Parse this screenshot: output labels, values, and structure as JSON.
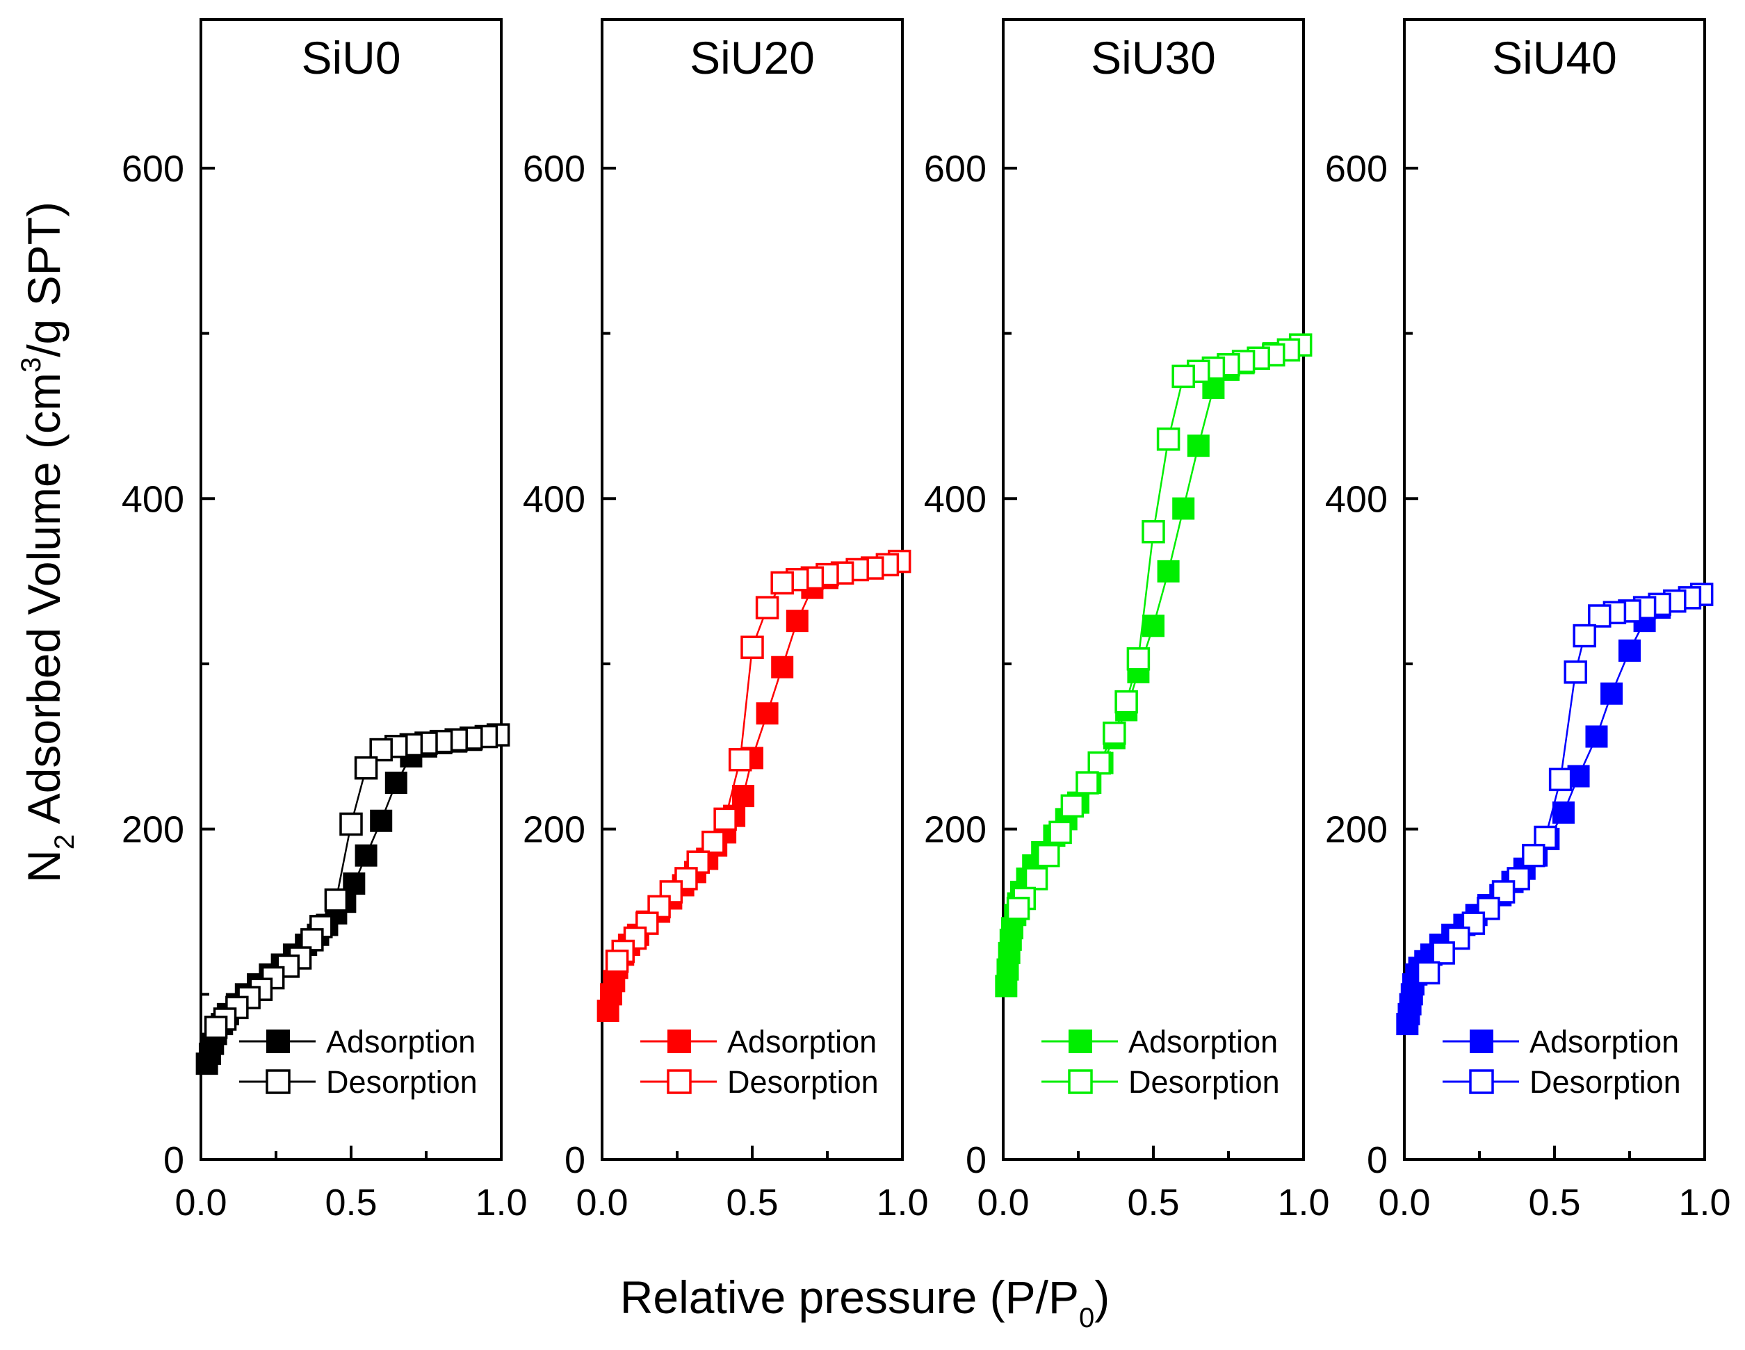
{
  "chart_data": {
    "type": "scatter",
    "xlabel_main": "Relative pressure (P/P",
    "xlabel_sub": "0",
    "xlabel_end": ")",
    "ylabel_pre": "N",
    "ylabel_sub": "2",
    "ylabel_mid": " Adsorbed Volume (cm",
    "ylabel_sup": "3",
    "ylabel_end": "/g SPT)",
    "xlim": [
      0.0,
      1.0
    ],
    "ylim": [
      0,
      690
    ],
    "xticks": [
      0.0,
      0.5,
      1.0
    ],
    "xtick_labels": [
      "0.0",
      "0.5",
      "1.0"
    ],
    "yticks": [
      0,
      200,
      400,
      600
    ],
    "ytick_labels": [
      "0",
      "200",
      "400",
      "600"
    ],
    "legend_labels": [
      "Adsorption",
      "Desorption"
    ],
    "panels": [
      {
        "title": "SiU0",
        "color": "#000000",
        "series": [
          {
            "name": "Adsorption",
            "filled": true,
            "x": [
              0.02,
              0.03,
              0.04,
              0.05,
              0.07,
              0.09,
              0.12,
              0.15,
              0.19,
              0.23,
              0.27,
              0.31,
              0.35,
              0.39,
              0.42,
              0.45,
              0.48,
              0.51,
              0.55,
              0.6,
              0.65,
              0.7,
              0.75,
              0.8,
              0.85,
              0.9,
              0.95,
              0.99
            ],
            "y": [
              58,
              64,
              70,
              76,
              82,
              88,
              94,
              100,
              106,
              112,
              118,
              124,
              130,
              136,
              142,
              149,
              156,
              167,
              184,
              205,
              228,
              244,
              250,
              252,
              253,
              254,
              256,
              257
            ]
          },
          {
            "name": "Desorption",
            "filled": false,
            "x": [
              0.99,
              0.95,
              0.9,
              0.85,
              0.8,
              0.75,
              0.7,
              0.65,
              0.6,
              0.55,
              0.5,
              0.45,
              0.4,
              0.37,
              0.33,
              0.29,
              0.24,
              0.2,
              0.16,
              0.12,
              0.08,
              0.05
            ],
            "y": [
              257,
              256,
              255,
              254,
              253,
              252,
              251,
              250,
              248,
              237,
              203,
              157,
              141,
              133,
              122,
              117,
              110,
              103,
              98,
              92,
              85,
              80
            ]
          }
        ],
        "legend": {
          "position": "lower-right"
        }
      },
      {
        "title": "SiU20",
        "color": "#ff0000",
        "series": [
          {
            "name": "Adsorption",
            "filled": true,
            "x": [
              0.02,
              0.03,
              0.04,
              0.05,
              0.07,
              0.09,
              0.12,
              0.15,
              0.19,
              0.23,
              0.27,
              0.31,
              0.35,
              0.38,
              0.41,
              0.44,
              0.47,
              0.5,
              0.55,
              0.6,
              0.65,
              0.7,
              0.75,
              0.8,
              0.85,
              0.9,
              0.95,
              0.99
            ],
            "y": [
              90,
              100,
              108,
              116,
              124,
              130,
              136,
              144,
              150,
              158,
              166,
              174,
              182,
              190,
              198,
              208,
              220,
              243,
              270,
              298,
              326,
              346,
              352,
              355,
              357,
              358,
              360,
              362
            ]
          },
          {
            "name": "Desorption",
            "filled": false,
            "x": [
              0.99,
              0.95,
              0.9,
              0.85,
              0.8,
              0.75,
              0.7,
              0.65,
              0.6,
              0.55,
              0.5,
              0.46,
              0.41,
              0.37,
              0.32,
              0.28,
              0.23,
              0.19,
              0.15,
              0.11,
              0.07,
              0.05
            ],
            "y": [
              362,
              360,
              358,
              357,
              355,
              354,
              352,
              351,
              349,
              334,
              310,
              242,
              206,
              192,
              180,
              170,
              162,
              153,
              143,
              134,
              126,
              120
            ]
          }
        ],
        "legend": {
          "position": "lower-right"
        }
      },
      {
        "title": "SiU30",
        "color": "#00ee00",
        "series": [
          {
            "name": "Adsorption",
            "filled": true,
            "x": [
              0.01,
              0.015,
              0.02,
              0.025,
              0.03,
              0.04,
              0.05,
              0.06,
              0.08,
              0.1,
              0.13,
              0.17,
              0.21,
              0.25,
              0.29,
              0.33,
              0.37,
              0.41,
              0.45,
              0.5,
              0.55,
              0.6,
              0.65,
              0.7,
              0.75,
              0.8,
              0.85,
              0.9,
              0.95,
              0.99
            ],
            "y": [
              105,
              115,
              125,
              133,
              140,
              148,
              155,
              162,
              170,
              178,
              186,
              196,
              206,
              216,
              228,
              240,
              255,
              272,
              295,
              323,
              356,
              394,
              432,
              467,
              478,
              482,
              485,
              488,
              490,
              493
            ]
          },
          {
            "name": "Desorption",
            "filled": false,
            "x": [
              0.99,
              0.95,
              0.9,
              0.85,
              0.8,
              0.75,
              0.7,
              0.65,
              0.6,
              0.55,
              0.5,
              0.45,
              0.41,
              0.37,
              0.32,
              0.28,
              0.23,
              0.19,
              0.15,
              0.11,
              0.07,
              0.05
            ],
            "y": [
              493,
              490,
              487,
              485,
              483,
              481,
              479,
              477,
              474,
              436,
              380,
              303,
              277,
              258,
              240,
              228,
              214,
              198,
              184,
              170,
              158,
              152
            ]
          }
        ],
        "legend": {
          "position": "lower-right"
        }
      },
      {
        "title": "SiU40",
        "color": "#0000ff",
        "series": [
          {
            "name": "Adsorption",
            "filled": true,
            "x": [
              0.01,
              0.015,
              0.02,
              0.025,
              0.03,
              0.04,
              0.05,
              0.07,
              0.09,
              0.12,
              0.16,
              0.2,
              0.24,
              0.28,
              0.32,
              0.36,
              0.4,
              0.44,
              0.48,
              0.53,
              0.58,
              0.64,
              0.69,
              0.75,
              0.8,
              0.85,
              0.9,
              0.95,
              0.99
            ],
            "y": [
              82,
              88,
              94,
              100,
              106,
              112,
              116,
              120,
              124,
              130,
              136,
              142,
              148,
              154,
              160,
              168,
              176,
              184,
              194,
              210,
              232,
              256,
              282,
              308,
              326,
              334,
              338,
              340,
              342
            ]
          },
          {
            "name": "Desorption",
            "filled": false,
            "x": [
              0.99,
              0.95,
              0.9,
              0.85,
              0.8,
              0.75,
              0.7,
              0.65,
              0.6,
              0.57,
              0.52,
              0.47,
              0.43,
              0.38,
              0.33,
              0.28,
              0.23,
              0.18,
              0.13,
              0.08
            ],
            "y": [
              342,
              340,
              338,
              336,
              334,
              332,
              331,
              329,
              317,
              295,
              230,
              195,
              184,
              170,
              162,
              152,
              143,
              134,
              125,
              113
            ]
          }
        ],
        "legend": {
          "position": "lower-right"
        }
      }
    ]
  }
}
